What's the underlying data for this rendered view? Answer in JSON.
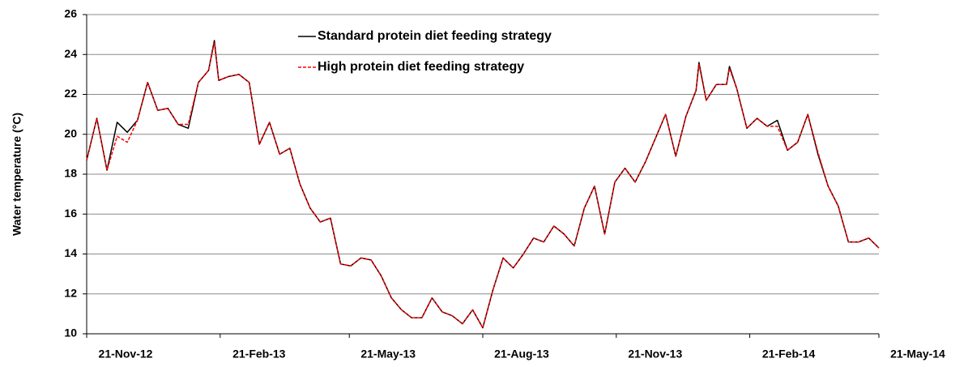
{
  "chart_data": {
    "type": "line",
    "y_label": "Water temperature (°C)",
    "x": [
      "2012-11-21",
      "2012-11-28",
      "2012-12-05",
      "2012-12-12",
      "2012-12-19",
      "2012-12-26",
      "2013-01-02",
      "2013-01-09",
      "2013-01-16",
      "2013-01-23",
      "2013-01-30",
      "2013-02-06",
      "2013-02-13",
      "2013-02-17",
      "2013-02-20",
      "2013-02-27",
      "2013-03-06",
      "2013-03-13",
      "2013-03-20",
      "2013-03-27",
      "2013-04-03",
      "2013-04-10",
      "2013-04-17",
      "2013-04-24",
      "2013-05-01",
      "2013-05-08",
      "2013-05-15",
      "2013-05-22",
      "2013-05-29",
      "2013-06-05",
      "2013-06-12",
      "2013-06-19",
      "2013-06-26",
      "2013-07-03",
      "2013-07-10",
      "2013-07-17",
      "2013-07-24",
      "2013-07-31",
      "2013-08-07",
      "2013-08-14",
      "2013-08-21",
      "2013-08-28",
      "2013-09-04",
      "2013-09-11",
      "2013-09-18",
      "2013-09-25",
      "2013-10-02",
      "2013-10-09",
      "2013-10-16",
      "2013-10-23",
      "2013-10-30",
      "2013-11-06",
      "2013-11-13",
      "2013-11-20",
      "2013-11-27",
      "2013-12-04",
      "2013-12-11",
      "2013-12-18",
      "2013-12-25",
      "2014-01-01",
      "2014-01-08",
      "2014-01-15",
      "2014-01-17",
      "2014-01-22",
      "2014-01-29",
      "2014-02-05",
      "2014-02-07",
      "2014-02-12",
      "2014-02-19",
      "2014-02-26",
      "2014-03-05",
      "2014-03-12",
      "2014-03-19",
      "2014-03-26",
      "2014-04-02",
      "2014-04-09",
      "2014-04-16",
      "2014-04-23",
      "2014-04-30",
      "2014-05-07",
      "2014-05-14",
      "2014-05-21"
    ],
    "series": [
      {
        "name": "Standard protein diet feeding strategy",
        "color": "#000000",
        "dash": false,
        "values": [
          18.7,
          20.8,
          18.2,
          20.6,
          20.1,
          20.7,
          22.6,
          21.2,
          21.3,
          20.5,
          20.3,
          22.6,
          23.2,
          24.7,
          22.7,
          22.9,
          23.0,
          22.6,
          19.5,
          20.6,
          19.0,
          19.3,
          17.5,
          16.3,
          15.6,
          15.8,
          13.5,
          13.4,
          13.8,
          13.7,
          12.9,
          11.8,
          11.2,
          10.8,
          10.8,
          11.8,
          11.1,
          10.9,
          10.5,
          11.2,
          10.3,
          12.2,
          13.8,
          13.3,
          14.0,
          14.8,
          14.6,
          15.4,
          15.0,
          14.4,
          16.3,
          17.4,
          15.0,
          17.6,
          18.3,
          17.6,
          18.6,
          19.8,
          21.0,
          18.9,
          20.9,
          22.2,
          23.6,
          21.7,
          22.5,
          22.5,
          23.4,
          22.3,
          20.3,
          20.8,
          20.4,
          20.7,
          19.2,
          19.6,
          21.0,
          19.0,
          17.4,
          16.4,
          14.6,
          14.6,
          14.8,
          14.3
        ]
      },
      {
        "name": "High protein diet feeding strategy",
        "color": "#ff0000",
        "dash": true,
        "values": [
          18.7,
          20.8,
          18.2,
          19.9,
          19.6,
          20.7,
          22.6,
          21.2,
          21.3,
          20.5,
          20.5,
          22.6,
          23.2,
          24.6,
          22.7,
          22.9,
          23.0,
          22.6,
          19.5,
          20.6,
          19.0,
          19.3,
          17.5,
          16.3,
          15.6,
          15.8,
          13.5,
          13.4,
          13.8,
          13.7,
          12.9,
          11.8,
          11.2,
          10.8,
          10.8,
          11.8,
          11.1,
          10.9,
          10.5,
          11.2,
          10.3,
          12.2,
          13.8,
          13.3,
          14.0,
          14.8,
          14.6,
          15.4,
          15.0,
          14.4,
          16.3,
          17.4,
          15.0,
          17.6,
          18.3,
          17.6,
          18.6,
          19.8,
          21.0,
          18.9,
          20.9,
          22.2,
          23.5,
          21.7,
          22.5,
          22.5,
          23.3,
          22.3,
          20.3,
          20.8,
          20.4,
          20.4,
          19.2,
          19.6,
          21.0,
          19.1,
          17.4,
          16.4,
          14.6,
          14.6,
          14.8,
          14.3
        ]
      }
    ],
    "xlim": [
      "2012-11-21",
      "2014-05-21"
    ],
    "xticks": [
      {
        "value": "2012-11-21",
        "label": "21-Nov-12"
      },
      {
        "value": "2013-02-21",
        "label": "21-Feb-13"
      },
      {
        "value": "2013-05-21",
        "label": "21-May-13"
      },
      {
        "value": "2013-08-21",
        "label": "21-Aug-13"
      },
      {
        "value": "2013-11-21",
        "label": "21-Nov-13"
      },
      {
        "value": "2014-02-21",
        "label": "21-Feb-14"
      },
      {
        "value": "2014-05-21",
        "label": "21-May-14"
      }
    ],
    "ylim": [
      10,
      26
    ],
    "yticks": [
      10,
      12,
      14,
      16,
      18,
      20,
      22,
      24,
      26
    ],
    "grid": true
  }
}
